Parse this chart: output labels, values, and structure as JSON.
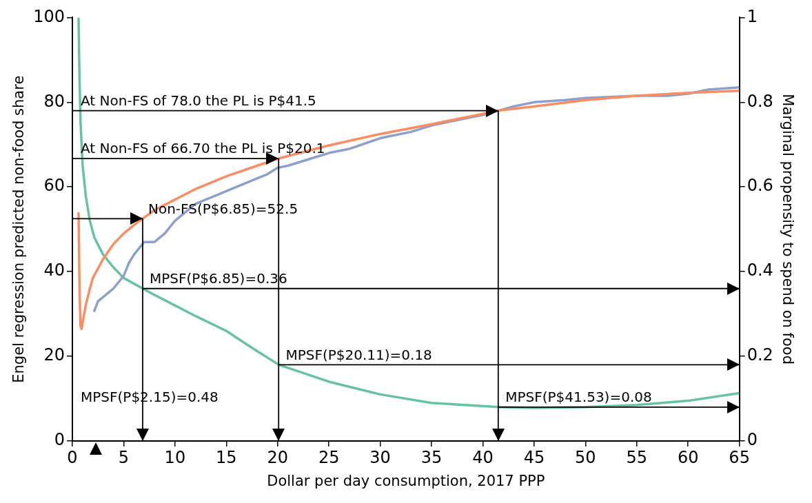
{
  "chart_data": {
    "type": "line",
    "xlabel": "Dollar per day consumption, 2017 PPP",
    "ylabel": "Engel regression predicted non-food share",
    "y2label": "Marginal propensity to spend on food",
    "xlim": [
      0,
      65
    ],
    "xticks": [
      0,
      5,
      10,
      15,
      20,
      25,
      30,
      35,
      40,
      45,
      50,
      55,
      60,
      65
    ],
    "ylim": [
      0,
      100
    ],
    "yticks": [
      0,
      20,
      40,
      60,
      80,
      100
    ],
    "y2lim": [
      0,
      1
    ],
    "y2ticks": [
      0,
      0.2,
      0.4,
      0.6,
      0.8,
      1
    ],
    "grid": false,
    "legend": false,
    "series": [
      {
        "color": "#fc8d62",
        "x": [
          0.6,
          0.65,
          0.7,
          0.8,
          0.9,
          1.0,
          1.3,
          1.7,
          2,
          3,
          4,
          5,
          6,
          6.85,
          8,
          10,
          12,
          15,
          18,
          20.1,
          25,
          30,
          35,
          41.5,
          45,
          50,
          55,
          60,
          65
        ],
        "values": [
          54,
          45,
          35,
          27,
          26.5,
          28,
          32,
          36,
          38.5,
          43,
          46.5,
          49,
          51,
          52.5,
          54.5,
          57,
          59.5,
          62.5,
          65,
          66.7,
          69.8,
          72.5,
          74.8,
          78,
          79,
          80.5,
          81.5,
          82.2,
          82.7
        ]
      },
      {
        "color": "#8da0cb",
        "x": [
          2.1,
          2.5,
          3,
          3.5,
          4,
          4.5,
          5,
          5.5,
          6,
          7,
          8,
          9,
          10,
          11,
          12,
          13,
          14,
          15,
          16,
          17,
          18,
          19,
          20,
          21,
          23,
          25,
          27,
          30,
          33,
          35,
          38,
          40,
          41.5,
          43,
          45,
          48,
          50,
          55,
          58,
          60,
          62,
          65
        ],
        "values": [
          30.5,
          33,
          34,
          35,
          36,
          37.5,
          39,
          42,
          44,
          47,
          47,
          49,
          52,
          54,
          56,
          57,
          58,
          59,
          60,
          61,
          62,
          63,
          64.5,
          65,
          66.5,
          68,
          69,
          71.5,
          73,
          74.5,
          76,
          77,
          78,
          79,
          80,
          80.5,
          81,
          81.5,
          81.5,
          82,
          83,
          83.5
        ]
      },
      {
        "color": "#66c2a5",
        "axis": "y2",
        "x": [
          0.6,
          0.7,
          0.8,
          1,
          1.3,
          1.7,
          2.15,
          3,
          4,
          5,
          6.85,
          8,
          10,
          12,
          15,
          17.5,
          20.11,
          25,
          30,
          35,
          41.53,
          45,
          50,
          55,
          60,
          65
        ],
        "values": [
          1.0,
          0.85,
          0.75,
          0.65,
          0.58,
          0.52,
          0.48,
          0.44,
          0.41,
          0.385,
          0.36,
          0.345,
          0.32,
          0.295,
          0.26,
          0.22,
          0.18,
          0.14,
          0.11,
          0.09,
          0.08,
          0.078,
          0.08,
          0.085,
          0.095,
          0.113
        ]
      }
    ],
    "ref_lines": [
      {
        "axis": "y2",
        "value": 0.36,
        "label": "MPSF(P$6.85)=0.36"
      },
      {
        "axis": "y2",
        "value": 0.18,
        "label": "MPSF(P$20.11)=0.18"
      },
      {
        "axis": "y2",
        "value": 0.08,
        "label": "MPSF(P$41.53)=0.08"
      }
    ],
    "annotations": [
      {
        "text": "At Non-FS of 78.0 the PL is P$41.5",
        "x": 41.5,
        "y": 78
      },
      {
        "text": "At Non-FS of 66.70 the PL is P$20.1",
        "x": 20.1,
        "y": 66.7
      },
      {
        "text": "Non-FS(P$6.85)=52.5",
        "x": 6.85,
        "y": 52.5
      },
      "MPSF(P$2.15)=0.48"
    ]
  }
}
